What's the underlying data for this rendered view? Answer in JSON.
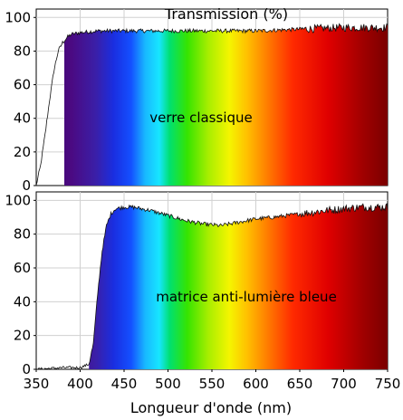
{
  "chart_data": [
    {
      "type": "area",
      "title": "Transmission (%)",
      "annotation": "verre classique",
      "xlim": [
        350,
        750
      ],
      "ylim": [
        0,
        105
      ],
      "y_ticks": [
        0,
        20,
        40,
        60,
        80,
        100
      ],
      "fill": "visible-spectrum gradient under curve",
      "x": [
        350,
        355,
        360,
        365,
        370,
        375,
        380,
        385,
        390,
        400,
        420,
        450,
        500,
        550,
        600,
        650,
        700,
        730,
        750
      ],
      "y": [
        0,
        12,
        30,
        50,
        68,
        80,
        85,
        88,
        90,
        91,
        92,
        92,
        92,
        92,
        92,
        93,
        94,
        94,
        94
      ],
      "spectrum_start": 382
    },
    {
      "type": "area",
      "annotation": "matrice anti-lumière bleue",
      "xlabel": "Longueur d'onde (nm)",
      "xlim": [
        350,
        750
      ],
      "ylim": [
        0,
        105
      ],
      "x_ticks": [
        350,
        400,
        450,
        500,
        550,
        600,
        650,
        700,
        750
      ],
      "y_ticks": [
        0,
        20,
        40,
        60,
        80,
        100
      ],
      "fill": "visible-spectrum gradient under curve",
      "x": [
        350,
        380,
        400,
        410,
        415,
        420,
        425,
        430,
        435,
        440,
        450,
        460,
        470,
        480,
        500,
        520,
        540,
        560,
        570,
        580,
        600,
        620,
        650,
        680,
        700,
        720,
        750
      ],
      "y": [
        0,
        1,
        1,
        3,
        15,
        45,
        70,
        85,
        92,
        95,
        96,
        96,
        95,
        94,
        91,
        88,
        86,
        85,
        86,
        87,
        89,
        90,
        92,
        94,
        95,
        96,
        96
      ],
      "spectrum_start": 410
    }
  ]
}
